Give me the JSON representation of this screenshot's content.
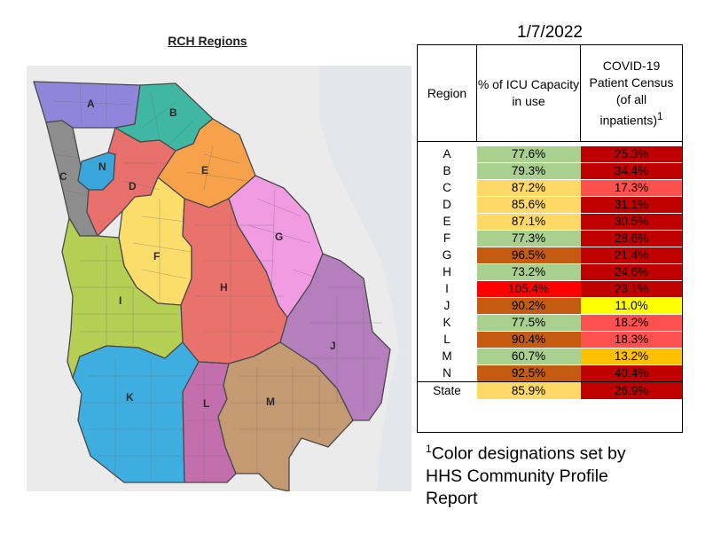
{
  "map": {
    "title": "RCH Regions",
    "regions": [
      {
        "id": "A",
        "color": "#8f86db"
      },
      {
        "id": "B",
        "color": "#3fb7a3"
      },
      {
        "id": "C",
        "color": "#8d8d8d"
      },
      {
        "id": "D",
        "color": "#e7706d"
      },
      {
        "id": "E",
        "color": "#f7a24b"
      },
      {
        "id": "F",
        "color": "#fadd6a"
      },
      {
        "id": "G",
        "color": "#f19be3"
      },
      {
        "id": "H",
        "color": "#e9726c"
      },
      {
        "id": "I",
        "color": "#b5cf55"
      },
      {
        "id": "J",
        "color": "#b57fbd"
      },
      {
        "id": "K",
        "color": "#3eaee0"
      },
      {
        "id": "L",
        "color": "#c36fae"
      },
      {
        "id": "M",
        "color": "#c49a72"
      },
      {
        "id": "N",
        "color": "#3aa7dc"
      }
    ]
  },
  "table": {
    "date": "1/7/2022",
    "headers": {
      "region": "Region",
      "icu": "% of ICU Capacity in use",
      "census_line1": "COVID-19",
      "census_line2": "Patient Census",
      "census_line3": "(of all",
      "census_line4": "inpatients)",
      "census_sup": "1"
    },
    "rows": [
      {
        "region": "A",
        "icu": "77.6%",
        "icu_color": "#a9d08e",
        "census": "25.3%",
        "census_color": "#c00000"
      },
      {
        "region": "B",
        "icu": "79.3%",
        "icu_color": "#a9d08e",
        "census": "34.4%",
        "census_color": "#c00000"
      },
      {
        "region": "C",
        "icu": "87.2%",
        "icu_color": "#ffd966",
        "census": "17.3%",
        "census_color": "#ff5050"
      },
      {
        "region": "D",
        "icu": "85.6%",
        "icu_color": "#ffd966",
        "census": "31.1%",
        "census_color": "#c00000"
      },
      {
        "region": "E",
        "icu": "87.1%",
        "icu_color": "#ffd966",
        "census": "30.5%",
        "census_color": "#c00000"
      },
      {
        "region": "F",
        "icu": "77.3%",
        "icu_color": "#a9d08e",
        "census": "28.6%",
        "census_color": "#c00000"
      },
      {
        "region": "G",
        "icu": "96.5%",
        "icu_color": "#c55a11",
        "census": "21.4%",
        "census_color": "#c00000"
      },
      {
        "region": "H",
        "icu": "73.2%",
        "icu_color": "#a9d08e",
        "census": "24.6%",
        "census_color": "#c00000"
      },
      {
        "region": "I",
        "icu": "105.4%",
        "icu_color": "#ff0000",
        "census": "23.1%",
        "census_color": "#c00000"
      },
      {
        "region": "J",
        "icu": "90.2%",
        "icu_color": "#c55a11",
        "census": "11.0%",
        "census_color": "#ffff00"
      },
      {
        "region": "K",
        "icu": "77.5%",
        "icu_color": "#a9d08e",
        "census": "18.2%",
        "census_color": "#ff5050"
      },
      {
        "region": "L",
        "icu": "90.4%",
        "icu_color": "#c55a11",
        "census": "18.3%",
        "census_color": "#ff5050"
      },
      {
        "region": "M",
        "icu": "60.7%",
        "icu_color": "#a9d08e",
        "census": "13.2%",
        "census_color": "#ffc000"
      },
      {
        "region": "N",
        "icu": "92.5%",
        "icu_color": "#c55a11",
        "census": "40.4%",
        "census_color": "#c00000"
      }
    ],
    "state": {
      "region": "State",
      "icu": "85.9%",
      "icu_color": "#ffd966",
      "census": "26.9%",
      "census_color": "#c00000"
    }
  },
  "footnote": {
    "sup": "1",
    "line1": "Color designations set by",
    "line2": "HHS Community Profile",
    "line3": "Report"
  }
}
